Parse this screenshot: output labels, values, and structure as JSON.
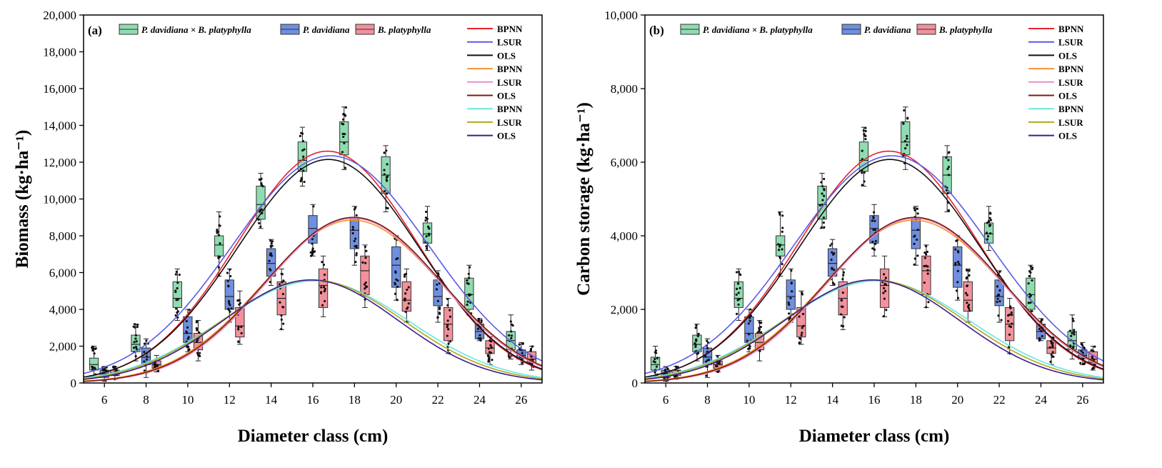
{
  "chart_data": [
    {
      "type": "box+line",
      "panel_label": "(a)",
      "ylabel": "Biomass (kg·ha⁻¹)",
      "xlabel": "Diameter class (cm)",
      "xlim": [
        5,
        27
      ],
      "ylim": [
        0,
        20000
      ],
      "x_ticks": [
        6,
        8,
        10,
        12,
        14,
        16,
        18,
        20,
        22,
        24,
        26
      ],
      "y_ticks": [
        0,
        2000,
        4000,
        6000,
        8000,
        10000,
        12000,
        14000,
        16000,
        18000,
        20000
      ],
      "y_tick_labels": [
        "0",
        "2,000",
        "4,000",
        "6,000",
        "8,000",
        "10,000",
        "12,000",
        "14,000",
        "16,000",
        "18,000",
        "20,000"
      ],
      "grid": false,
      "legend_position": "top",
      "box_legend": [
        {
          "name": "P. davidiana × B. platyphylla",
          "color": "#8fdcb0"
        },
        {
          "name": "P. davidiana",
          "color": "#6f8fe0"
        },
        {
          "name": "B. platyphylla",
          "color": "#f2919b"
        }
      ],
      "box_series": [
        {
          "name": "P. davidiana × B. platyphylla",
          "color": "#8fdcb0",
          "offset": -0.5,
          "boxes": [
            {
              "x": 6,
              "low": 300,
              "q1": 700,
              "median": 1000,
              "q3": 1350,
              "high": 2000
            },
            {
              "x": 8,
              "low": 1200,
              "q1": 1700,
              "median": 2100,
              "q3": 2600,
              "high": 3200
            },
            {
              "x": 10,
              "low": 3400,
              "q1": 4100,
              "median": 4600,
              "q3": 5500,
              "high": 6200
            },
            {
              "x": 12,
              "low": 5800,
              "q1": 6900,
              "median": 7500,
              "q3": 8000,
              "high": 9300
            },
            {
              "x": 14,
              "low": 8400,
              "q1": 8900,
              "median": 9700,
              "q3": 10700,
              "high": 11400
            },
            {
              "x": 16,
              "low": 10700,
              "q1": 11500,
              "median": 12100,
              "q3": 13100,
              "high": 13900
            },
            {
              "x": 18,
              "low": 11600,
              "q1": 12400,
              "median": 13100,
              "q3": 14200,
              "high": 15000
            },
            {
              "x": 20,
              "low": 9300,
              "q1": 10300,
              "median": 11300,
              "q3": 12300,
              "high": 12900
            },
            {
              "x": 22,
              "low": 7200,
              "q1": 7600,
              "median": 8100,
              "q3": 8700,
              "high": 9600
            },
            {
              "x": 24,
              "low": 3700,
              "q1": 4000,
              "median": 4800,
              "q3": 5700,
              "high": 6400
            },
            {
              "x": 26,
              "low": 1300,
              "q1": 1800,
              "median": 2300,
              "q3": 2800,
              "high": 3700
            }
          ]
        },
        {
          "name": "P. davidiana",
          "color": "#6f8fe0",
          "offset": 0,
          "boxes": [
            {
              "x": 6,
              "low": 100,
              "q1": 300,
              "median": 500,
              "q3": 700,
              "high": 900
            },
            {
              "x": 8,
              "low": 300,
              "q1": 1000,
              "median": 1400,
              "q3": 1900,
              "high": 2400
            },
            {
              "x": 10,
              "low": 1700,
              "q1": 2200,
              "median": 2700,
              "q3": 3600,
              "high": 4000
            },
            {
              "x": 12,
              "low": 3300,
              "q1": 4000,
              "median": 4700,
              "q3": 5600,
              "high": 6200
            },
            {
              "x": 14,
              "low": 5300,
              "q1": 5800,
              "median": 6500,
              "q3": 7300,
              "high": 7800
            },
            {
              "x": 16,
              "low": 6900,
              "q1": 7600,
              "median": 8400,
              "q3": 9100,
              "high": 9700
            },
            {
              "x": 18,
              "low": 6400,
              "q1": 7300,
              "median": 8300,
              "q3": 9000,
              "high": 9600
            },
            {
              "x": 20,
              "low": 4500,
              "q1": 5200,
              "median": 6400,
              "q3": 7400,
              "high": 8000
            },
            {
              "x": 22,
              "low": 3300,
              "q1": 4200,
              "median": 4700,
              "q3": 5600,
              "high": 6100
            },
            {
              "x": 24,
              "low": 2300,
              "q1": 2400,
              "median": 2800,
              "q3": 3200,
              "high": 3500
            },
            {
              "x": 26,
              "low": 1000,
              "q1": 1300,
              "median": 1500,
              "q3": 1800,
              "high": 2200
            }
          ]
        },
        {
          "name": "B. platyphylla",
          "color": "#f2919b",
          "offset": 0.5,
          "boxes": [
            {
              "x": 6,
              "low": 200,
              "q1": 400,
              "median": 550,
              "q3": 700,
              "high": 900
            },
            {
              "x": 8,
              "low": 600,
              "q1": 800,
              "median": 1000,
              "q3": 1200,
              "high": 1500
            },
            {
              "x": 10,
              "low": 1200,
              "q1": 1800,
              "median": 2200,
              "q3": 2700,
              "high": 3400
            },
            {
              "x": 12,
              "low": 2100,
              "q1": 2500,
              "median": 3100,
              "q3": 4100,
              "high": 5000
            },
            {
              "x": 14,
              "low": 2900,
              "q1": 3700,
              "median": 4600,
              "q3": 5500,
              "high": 6200
            },
            {
              "x": 16,
              "low": 3600,
              "q1": 4100,
              "median": 5300,
              "q3": 6200,
              "high": 6900
            },
            {
              "x": 18,
              "low": 4100,
              "q1": 4800,
              "median": 6100,
              "q3": 6900,
              "high": 7500
            },
            {
              "x": 20,
              "low": 3300,
              "q1": 3900,
              "median": 4500,
              "q3": 5500,
              "high": 6200
            },
            {
              "x": 22,
              "low": 1600,
              "q1": 2300,
              "median": 3200,
              "q3": 4100,
              "high": 4600
            },
            {
              "x": 24,
              "low": 1000,
              "q1": 1600,
              "median": 1900,
              "q3": 2300,
              "high": 2500
            },
            {
              "x": 26,
              "low": 700,
              "q1": 1100,
              "median": 1300,
              "q3": 1700,
              "high": 2000
            }
          ]
        }
      ],
      "line_series": [
        {
          "name": "BPNN",
          "color": "#e8212b",
          "peak": 12600,
          "mu": 16.7,
          "sigma": 4.3,
          "base": 0
        },
        {
          "name": "LSUR",
          "color": "#5a5ae6",
          "peak": 12350,
          "mu": 16.85,
          "sigma": 4.7,
          "base": 0
        },
        {
          "name": "OLS",
          "color": "#111111",
          "peak": 12150,
          "mu": 16.75,
          "sigma": 4.35,
          "base": 0
        },
        {
          "name": "BPNN",
          "color": "#f59331",
          "peak": 8850,
          "mu": 17.9,
          "sigma": 4.3,
          "base": 0
        },
        {
          "name": "LSUR",
          "color": "#e98ec6",
          "peak": 8950,
          "mu": 17.95,
          "sigma": 4.2,
          "base": 0
        },
        {
          "name": "OLS",
          "color": "#7a1c12",
          "peak": 9000,
          "mu": 17.95,
          "sigma": 4.25,
          "base": 0
        },
        {
          "name": "BPNN",
          "color": "#66e6e6",
          "peak": 5550,
          "mu": 16.1,
          "sigma": 4.5,
          "base": 0
        },
        {
          "name": "LSUR",
          "color": "#b2a816",
          "peak": 5600,
          "mu": 16.0,
          "sigma": 4.35,
          "base": 0
        },
        {
          "name": "OLS",
          "color": "#3b1c93",
          "peak": 5600,
          "mu": 15.9,
          "sigma": 4.2,
          "base": 0
        }
      ]
    },
    {
      "type": "box+line",
      "panel_label": "(b)",
      "ylabel": "Carbon storage (kg·ha⁻¹)",
      "xlabel": "Diameter class (cm)",
      "xlim": [
        5,
        27
      ],
      "ylim": [
        0,
        10000
      ],
      "x_ticks": [
        6,
        8,
        10,
        12,
        14,
        16,
        18,
        20,
        22,
        24,
        26
      ],
      "y_ticks": [
        0,
        2000,
        4000,
        6000,
        8000,
        10000
      ],
      "y_tick_labels": [
        "0",
        "2,000",
        "4,000",
        "6,000",
        "8,000",
        "10,000"
      ],
      "grid": false,
      "legend_position": "top",
      "box_legend": [
        {
          "name": "P. davidiana × B. platyphylla",
          "color": "#8fdcb0"
        },
        {
          "name": "P. davidiana",
          "color": "#6f8fe0"
        },
        {
          "name": "B. platyphylla",
          "color": "#f2919b"
        }
      ],
      "box_series": [
        {
          "name": "P. davidiana × B. platyphylla",
          "color": "#8fdcb0",
          "offset": -0.5,
          "boxes": [
            {
              "x": 6,
              "low": 150,
              "q1": 350,
              "median": 500,
              "q3": 700,
              "high": 1000
            },
            {
              "x": 8,
              "low": 600,
              "q1": 850,
              "median": 1050,
              "q3": 1300,
              "high": 1600
            },
            {
              "x": 10,
              "low": 1700,
              "q1": 2050,
              "median": 2300,
              "q3": 2750,
              "high": 3100
            },
            {
              "x": 12,
              "low": 2900,
              "q1": 3450,
              "median": 3750,
              "q3": 4000,
              "high": 4650
            },
            {
              "x": 14,
              "low": 4200,
              "q1": 4450,
              "median": 4850,
              "q3": 5350,
              "high": 5700
            },
            {
              "x": 16,
              "low": 5350,
              "q1": 5750,
              "median": 6050,
              "q3": 6550,
              "high": 6950
            },
            {
              "x": 18,
              "low": 5800,
              "q1": 6200,
              "median": 6550,
              "q3": 7100,
              "high": 7500
            },
            {
              "x": 20,
              "low": 4650,
              "q1": 5150,
              "median": 5650,
              "q3": 6150,
              "high": 6450
            },
            {
              "x": 22,
              "low": 3600,
              "q1": 3800,
              "median": 4050,
              "q3": 4350,
              "high": 4800
            },
            {
              "x": 24,
              "low": 1850,
              "q1": 2000,
              "median": 2400,
              "q3": 2850,
              "high": 3200
            },
            {
              "x": 26,
              "low": 650,
              "q1": 900,
              "median": 1150,
              "q3": 1400,
              "high": 1850
            }
          ]
        },
        {
          "name": "P. davidiana",
          "color": "#6f8fe0",
          "offset": 0,
          "boxes": [
            {
              "x": 6,
              "low": 50,
              "q1": 150,
              "median": 250,
              "q3": 350,
              "high": 450
            },
            {
              "x": 8,
              "low": 150,
              "q1": 500,
              "median": 700,
              "q3": 950,
              "high": 1200
            },
            {
              "x": 10,
              "low": 850,
              "q1": 1100,
              "median": 1350,
              "q3": 1800,
              "high": 2000
            },
            {
              "x": 12,
              "low": 1650,
              "q1": 2000,
              "median": 2350,
              "q3": 2800,
              "high": 3100
            },
            {
              "x": 14,
              "low": 2650,
              "q1": 2900,
              "median": 3250,
              "q3": 3650,
              "high": 3900
            },
            {
              "x": 16,
              "low": 3450,
              "q1": 3800,
              "median": 4200,
              "q3": 4550,
              "high": 4850
            },
            {
              "x": 18,
              "low": 3200,
              "q1": 3650,
              "median": 4150,
              "q3": 4500,
              "high": 4800
            },
            {
              "x": 20,
              "low": 2250,
              "q1": 2600,
              "median": 3200,
              "q3": 3700,
              "high": 4000
            },
            {
              "x": 22,
              "low": 1650,
              "q1": 2100,
              "median": 2350,
              "q3": 2800,
              "high": 3050
            },
            {
              "x": 24,
              "low": 1150,
              "q1": 1200,
              "median": 1400,
              "q3": 1600,
              "high": 1750
            },
            {
              "x": 26,
              "low": 500,
              "q1": 650,
              "median": 750,
              "q3": 900,
              "high": 1100
            }
          ]
        },
        {
          "name": "B. platyphylla",
          "color": "#f2919b",
          "offset": 0.5,
          "boxes": [
            {
              "x": 6,
              "low": 100,
              "q1": 200,
              "median": 275,
              "q3": 350,
              "high": 450
            },
            {
              "x": 8,
              "low": 300,
              "q1": 400,
              "median": 500,
              "q3": 600,
              "high": 750
            },
            {
              "x": 10,
              "low": 600,
              "q1": 900,
              "median": 1100,
              "q3": 1350,
              "high": 1700
            },
            {
              "x": 12,
              "low": 1050,
              "q1": 1250,
              "median": 1550,
              "q3": 2050,
              "high": 2500
            },
            {
              "x": 14,
              "low": 1450,
              "q1": 1850,
              "median": 2300,
              "q3": 2750,
              "high": 3100
            },
            {
              "x": 16,
              "low": 1800,
              "q1": 2050,
              "median": 2650,
              "q3": 3100,
              "high": 3450
            },
            {
              "x": 18,
              "low": 2050,
              "q1": 2400,
              "median": 3050,
              "q3": 3450,
              "high": 3750
            },
            {
              "x": 20,
              "low": 1650,
              "q1": 1950,
              "median": 2250,
              "q3": 2750,
              "high": 3100
            },
            {
              "x": 22,
              "low": 800,
              "q1": 1150,
              "median": 1600,
              "q3": 2050,
              "high": 2300
            },
            {
              "x": 24,
              "low": 500,
              "q1": 800,
              "median": 950,
              "q3": 1150,
              "high": 1250
            },
            {
              "x": 26,
              "low": 350,
              "q1": 550,
              "median": 650,
              "q3": 850,
              "high": 1000
            }
          ]
        }
      ],
      "line_series": [
        {
          "name": "BPNN",
          "color": "#e8212b",
          "peak": 6300,
          "mu": 16.7,
          "sigma": 4.3,
          "base": 0
        },
        {
          "name": "LSUR",
          "color": "#5a5ae6",
          "peak": 6175,
          "mu": 16.85,
          "sigma": 4.7,
          "base": 0
        },
        {
          "name": "OLS",
          "color": "#111111",
          "peak": 6075,
          "mu": 16.75,
          "sigma": 4.35,
          "base": 0
        },
        {
          "name": "BPNN",
          "color": "#f59331",
          "peak": 4425,
          "mu": 17.9,
          "sigma": 4.3,
          "base": 0
        },
        {
          "name": "LSUR",
          "color": "#e98ec6",
          "peak": 4475,
          "mu": 17.95,
          "sigma": 4.2,
          "base": 0
        },
        {
          "name": "OLS",
          "color": "#7a1c12",
          "peak": 4500,
          "mu": 17.95,
          "sigma": 4.25,
          "base": 0
        },
        {
          "name": "BPNN",
          "color": "#66e6e6",
          "peak": 2775,
          "mu": 16.1,
          "sigma": 4.5,
          "base": 0
        },
        {
          "name": "LSUR",
          "color": "#b2a816",
          "peak": 2800,
          "mu": 16.0,
          "sigma": 4.35,
          "base": 0
        },
        {
          "name": "OLS",
          "color": "#3b1c93",
          "peak": 2800,
          "mu": 15.9,
          "sigma": 4.2,
          "base": 0
        }
      ]
    }
  ]
}
